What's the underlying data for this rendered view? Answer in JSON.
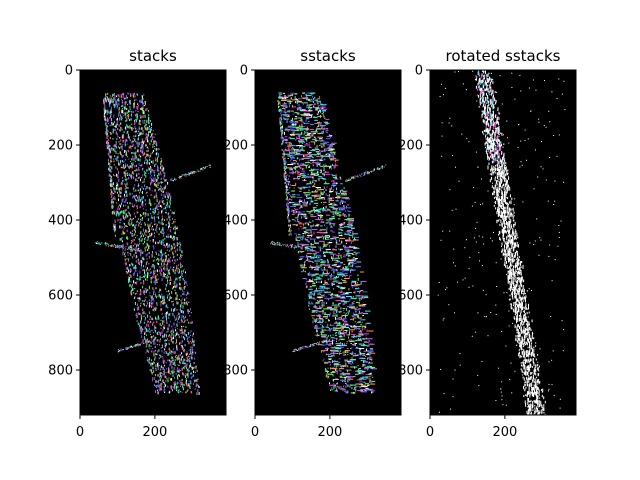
{
  "chart_data": [
    {
      "type": "heatmap",
      "title": "stacks",
      "xlabel": "",
      "ylabel": "",
      "xlim": [
        0,
        390
      ],
      "ylim": [
        920,
        0
      ],
      "xticks": [
        0,
        200
      ],
      "yticks": [
        0,
        200,
        400,
        600,
        800
      ],
      "colors": [
        "#ff3bd2",
        "#38f0ff",
        "#7dff5a",
        "#5a5aff",
        "#ffffff",
        "#ff9a3a",
        "#b06bff",
        "#40ffb0"
      ]
    },
    {
      "type": "heatmap",
      "title": "sstacks",
      "xlabel": "",
      "ylabel": "",
      "xlim": [
        0,
        390
      ],
      "ylim": [
        920,
        0
      ],
      "xticks": [
        0,
        200
      ],
      "yticks": [
        0,
        200,
        400,
        600,
        800
      ],
      "colors": [
        "#4060ff",
        "#38f0ff",
        "#ffffff",
        "#ff3bd2",
        "#7dff5a",
        "#b06bff",
        "#40ffb0",
        "#ff9a3a"
      ]
    },
    {
      "type": "heatmap",
      "title": "rotated sstacks",
      "xlabel": "",
      "ylabel": "",
      "xlim": [
        0,
        390
      ],
      "ylim": [
        920,
        0
      ],
      "xticks": [
        0,
        200
      ],
      "yticks": [
        0,
        200,
        400,
        600,
        800
      ],
      "colors": [
        "#ffffff",
        "#ffffff",
        "#ffffff",
        "#ffffff",
        "#38f0ff",
        "#ff3bd2"
      ]
    }
  ]
}
